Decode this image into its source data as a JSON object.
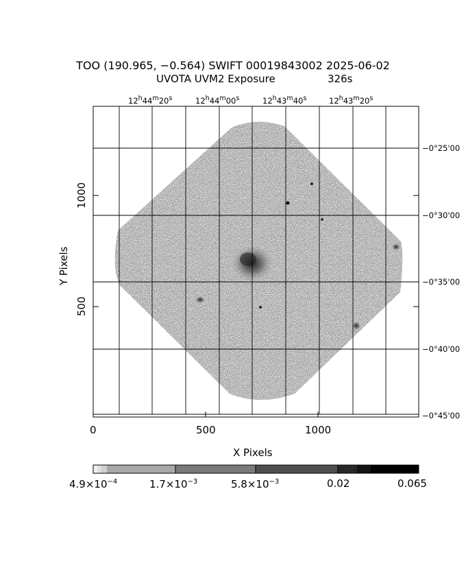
{
  "header": {
    "title": "TOO (190.965, −0.564) SWIFT 00019843002 2025-06-02",
    "exposure_label": "UVOTA UVM2 Exposure",
    "exposure_value": "326s"
  },
  "axes": {
    "x_label": "X Pixels",
    "y_label": "Y Pixels",
    "x_ticks": [
      "0",
      "500",
      "1000"
    ],
    "y_ticks": [
      "500",
      "1000"
    ],
    "ra_ticks": [
      {
        "h": "12",
        "m": "44",
        "s": "20"
      },
      {
        "h": "12",
        "m": "44",
        "s": "00"
      },
      {
        "h": "12",
        "m": "43",
        "s": "40"
      },
      {
        "h": "12",
        "m": "43",
        "s": "20"
      }
    ],
    "dec_ticks": [
      "−0°25'00",
      "−0°30'00",
      "−0°35'00",
      "−0°40'00",
      "−0°45'00"
    ]
  },
  "colorbar": {
    "scale": "log",
    "labels": [
      {
        "m": "4.9×10",
        "e": "−4"
      },
      {
        "m": "1.7×10",
        "e": "−3"
      },
      {
        "m": "5.8×10",
        "e": "−3"
      },
      {
        "m": "0.02",
        "e": ""
      },
      {
        "m": "0.065",
        "e": ""
      }
    ]
  },
  "colors": {
    "background": "#ffffff",
    "ink": "#000000",
    "noise": "#5a5a5a"
  }
}
